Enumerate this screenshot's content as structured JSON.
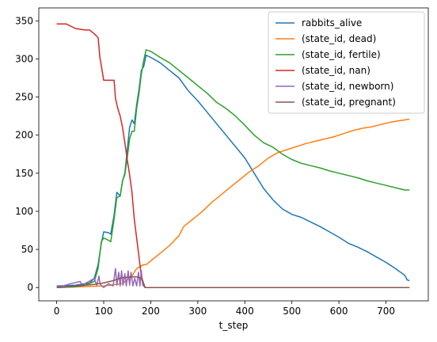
{
  "chart_data": {
    "type": "line",
    "title": "",
    "xlabel": "t_step",
    "ylabel": "",
    "xlim": [
      -38,
      790
    ],
    "ylim": [
      -17.5,
      367
    ],
    "x_ticks": [
      0,
      100,
      200,
      300,
      400,
      500,
      600,
      700
    ],
    "y_ticks": [
      0,
      50,
      100,
      150,
      200,
      250,
      300,
      350
    ],
    "grid": false,
    "legend_position": "top-right",
    "series": [
      {
        "name": "rabbits_alive",
        "color": "#1f77b4",
        "points": [
          [
            0,
            2
          ],
          [
            40,
            3
          ],
          [
            70,
            6
          ],
          [
            80,
            12
          ],
          [
            88,
            30
          ],
          [
            95,
            58
          ],
          [
            100,
            73
          ],
          [
            110,
            72
          ],
          [
            115,
            70
          ],
          [
            122,
            95
          ],
          [
            128,
            125
          ],
          [
            135,
            120
          ],
          [
            140,
            140
          ],
          [
            145,
            150
          ],
          [
            150,
            180
          ],
          [
            155,
            210
          ],
          [
            160,
            220
          ],
          [
            165,
            215
          ],
          [
            170,
            240
          ],
          [
            175,
            260
          ],
          [
            180,
            285
          ],
          [
            185,
            290
          ],
          [
            190,
            305
          ],
          [
            200,
            302
          ],
          [
            220,
            295
          ],
          [
            240,
            285
          ],
          [
            260,
            275
          ],
          [
            280,
            258
          ],
          [
            300,
            245
          ],
          [
            320,
            230
          ],
          [
            340,
            215
          ],
          [
            360,
            200
          ],
          [
            380,
            185
          ],
          [
            400,
            170
          ],
          [
            420,
            150
          ],
          [
            440,
            130
          ],
          [
            460,
            115
          ],
          [
            480,
            103
          ],
          [
            500,
            96
          ],
          [
            520,
            92
          ],
          [
            540,
            86
          ],
          [
            560,
            80
          ],
          [
            580,
            73
          ],
          [
            600,
            66
          ],
          [
            620,
            58
          ],
          [
            640,
            53
          ],
          [
            660,
            47
          ],
          [
            680,
            40
          ],
          [
            700,
            33
          ],
          [
            720,
            25
          ],
          [
            740,
            16
          ],
          [
            745,
            10
          ],
          [
            750,
            9
          ]
        ]
      },
      {
        "name": "(state_id, dead)",
        "color": "#ff7f0e",
        "points": [
          [
            0,
            0
          ],
          [
            100,
            2
          ],
          [
            140,
            5
          ],
          [
            160,
            15
          ],
          [
            170,
            25
          ],
          [
            185,
            30
          ],
          [
            190,
            30
          ],
          [
            200,
            35
          ],
          [
            220,
            45
          ],
          [
            240,
            55
          ],
          [
            260,
            68
          ],
          [
            270,
            80
          ],
          [
            290,
            90
          ],
          [
            310,
            100
          ],
          [
            330,
            112
          ],
          [
            350,
            122
          ],
          [
            370,
            132
          ],
          [
            390,
            142
          ],
          [
            410,
            152
          ],
          [
            430,
            160
          ],
          [
            450,
            170
          ],
          [
            470,
            177
          ],
          [
            490,
            181
          ],
          [
            510,
            185
          ],
          [
            530,
            189
          ],
          [
            550,
            192
          ],
          [
            570,
            195
          ],
          [
            590,
            198
          ],
          [
            610,
            202
          ],
          [
            630,
            206
          ],
          [
            650,
            209
          ],
          [
            670,
            211
          ],
          [
            690,
            214
          ],
          [
            710,
            217
          ],
          [
            730,
            219
          ],
          [
            750,
            221
          ]
        ]
      },
      {
        "name": "(state_id, fertile)",
        "color": "#2ca02c",
        "points": [
          [
            0,
            0
          ],
          [
            40,
            1
          ],
          [
            60,
            3
          ],
          [
            80,
            8
          ],
          [
            88,
            25
          ],
          [
            95,
            60
          ],
          [
            100,
            65
          ],
          [
            110,
            62
          ],
          [
            115,
            60
          ],
          [
            122,
            90
          ],
          [
            128,
            118
          ],
          [
            135,
            120
          ],
          [
            140,
            140
          ],
          [
            145,
            148
          ],
          [
            150,
            170
          ],
          [
            155,
            195
          ],
          [
            160,
            205
          ],
          [
            165,
            205
          ],
          [
            170,
            235
          ],
          [
            175,
            255
          ],
          [
            180,
            280
          ],
          [
            185,
            298
          ],
          [
            190,
            312
          ],
          [
            200,
            310
          ],
          [
            220,
            302
          ],
          [
            240,
            295
          ],
          [
            260,
            285
          ],
          [
            280,
            275
          ],
          [
            300,
            265
          ],
          [
            320,
            255
          ],
          [
            340,
            243
          ],
          [
            360,
            235
          ],
          [
            380,
            225
          ],
          [
            400,
            213
          ],
          [
            420,
            200
          ],
          [
            440,
            190
          ],
          [
            460,
            184
          ],
          [
            480,
            175
          ],
          [
            500,
            168
          ],
          [
            520,
            163
          ],
          [
            540,
            160
          ],
          [
            560,
            157
          ],
          [
            580,
            153
          ],
          [
            600,
            150
          ],
          [
            620,
            147
          ],
          [
            640,
            144
          ],
          [
            660,
            140
          ],
          [
            680,
            137
          ],
          [
            700,
            134
          ],
          [
            720,
            131
          ],
          [
            740,
            128
          ],
          [
            750,
            128
          ]
        ]
      },
      {
        "name": "(state_id, nan)",
        "color": "#d62728",
        "points": [
          [
            0,
            346
          ],
          [
            20,
            346
          ],
          [
            40,
            340
          ],
          [
            60,
            338
          ],
          [
            70,
            338
          ],
          [
            80,
            333
          ],
          [
            88,
            328
          ],
          [
            92,
            302
          ],
          [
            96,
            287
          ],
          [
            100,
            272
          ],
          [
            110,
            272
          ],
          [
            122,
            272
          ],
          [
            125,
            248
          ],
          [
            130,
            235
          ],
          [
            135,
            225
          ],
          [
            140,
            210
          ],
          [
            145,
            190
          ],
          [
            150,
            168
          ],
          [
            155,
            148
          ],
          [
            160,
            125
          ],
          [
            165,
            90
          ],
          [
            170,
            65
          ],
          [
            175,
            40
          ],
          [
            180,
            15
          ],
          [
            185,
            5
          ],
          [
            188,
            0
          ],
          [
            750,
            0
          ]
        ]
      },
      {
        "name": "(state_id, newborn)",
        "color": "#9467bd",
        "points": [
          [
            0,
            0
          ],
          [
            30,
            5
          ],
          [
            50,
            8
          ],
          [
            55,
            2
          ],
          [
            60,
            5
          ],
          [
            80,
            12
          ],
          [
            85,
            3
          ],
          [
            90,
            15
          ],
          [
            92,
            5
          ],
          [
            96,
            2
          ],
          [
            100,
            0
          ],
          [
            110,
            5
          ],
          [
            120,
            2
          ],
          [
            125,
            25
          ],
          [
            128,
            3
          ],
          [
            132,
            20
          ],
          [
            135,
            2
          ],
          [
            138,
            22
          ],
          [
            141,
            3
          ],
          [
            145,
            18
          ],
          [
            148,
            2
          ],
          [
            152,
            22
          ],
          [
            155,
            3
          ],
          [
            158,
            20
          ],
          [
            162,
            2
          ],
          [
            166,
            12
          ],
          [
            170,
            2
          ],
          [
            174,
            20
          ],
          [
            177,
            2
          ],
          [
            180,
            22
          ],
          [
            183,
            3
          ],
          [
            185,
            2
          ],
          [
            188,
            0
          ],
          [
            750,
            0
          ]
        ]
      },
      {
        "name": "(state_id, pregnant)",
        "color": "#8c564b",
        "points": [
          [
            0,
            0
          ],
          [
            20,
            1
          ],
          [
            40,
            2
          ],
          [
            60,
            3
          ],
          [
            80,
            4
          ],
          [
            100,
            6
          ],
          [
            120,
            9
          ],
          [
            140,
            13
          ],
          [
            160,
            14
          ],
          [
            170,
            14
          ],
          [
            180,
            12
          ],
          [
            185,
            5
          ],
          [
            188,
            0
          ],
          [
            750,
            0
          ]
        ]
      }
    ]
  }
}
